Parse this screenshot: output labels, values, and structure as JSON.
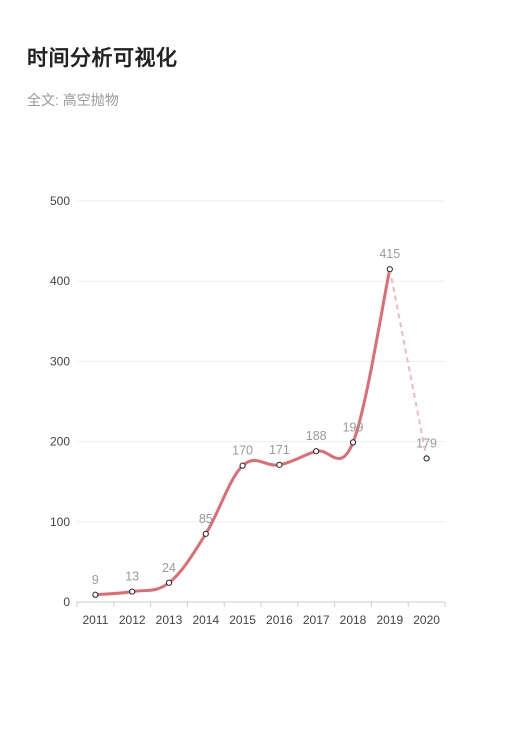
{
  "header": {
    "title": "时间分析可视化",
    "subtitle_label": "全文:",
    "subtitle_value": "高空抛物"
  },
  "chart_data": {
    "type": "line",
    "title": "时间分析可视化",
    "subtitle": "全文: 高空抛物",
    "categories": [
      "2011",
      "2012",
      "2013",
      "2014",
      "2015",
      "2016",
      "2017",
      "2018",
      "2019",
      "2020"
    ],
    "values": [
      9,
      13,
      24,
      85,
      170,
      171,
      188,
      199,
      415,
      179
    ],
    "data_labels": [
      "9",
      "13",
      "24",
      "85",
      "170",
      "171",
      "188",
      "199",
      "415",
      "179"
    ],
    "ylim": [
      0,
      500
    ],
    "yticks": [
      0,
      100,
      200,
      300,
      400,
      500
    ],
    "ytick_labels": [
      "0",
      "100",
      "200",
      "300",
      "400",
      "500"
    ],
    "grid": true,
    "legend": "none",
    "last_segment_style": "dashed",
    "colors": {
      "line": "#e06c73",
      "dashed": "#f2b8bd",
      "grid": "#eeeeee",
      "axis": "#cccccc",
      "point_stroke": "#222222",
      "point_fill": "#ffffff"
    }
  }
}
